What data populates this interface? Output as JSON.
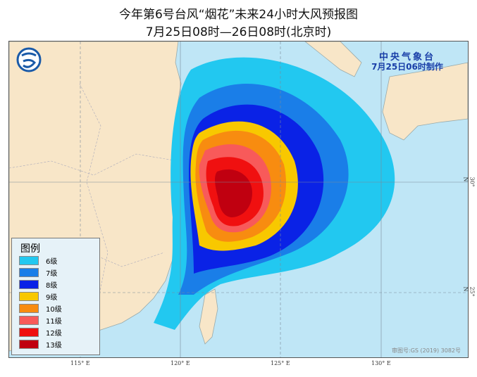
{
  "title": {
    "line1": "今年第6号台风“烟花”未来24小时大风预报图",
    "line2": "7月25日08时—26日08时(北京时)"
  },
  "agency": {
    "name": "中央气象台",
    "issued": "7月25日06时制作"
  },
  "logo": "cma-logo",
  "map": {
    "longitude_labels": [
      "115° E",
      "120° E",
      "125° E",
      "130° E"
    ],
    "latitude_labels": [
      "30° N",
      "25° N"
    ],
    "colors": {
      "land": "#f8e6c8",
      "sea": "#bfe6f6",
      "border": "#9aa"
    }
  },
  "legend": {
    "title": "图例",
    "items": [
      {
        "label": "6级",
        "color": "#22c8f0"
      },
      {
        "label": "7级",
        "color": "#1a7ee8"
      },
      {
        "label": "8级",
        "color": "#0a22e6"
      },
      {
        "label": "9级",
        "color": "#f8c800"
      },
      {
        "label": "10级",
        "color": "#f88c10"
      },
      {
        "label": "11级",
        "color": "#f85a5a"
      },
      {
        "label": "12级",
        "color": "#f01010"
      },
      {
        "label": "13级",
        "color": "#c00010"
      }
    ]
  },
  "approval": "审图号:GS (2019) 3082号"
}
